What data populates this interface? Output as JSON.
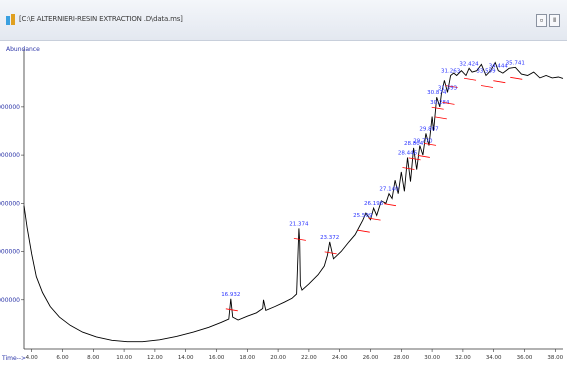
{
  "window": {
    "title": "[C:\\E ALTERNIERI-RESIN EXTRACTION .D\\data.ms]",
    "minimize_label": "▫",
    "close_label": "ǁ"
  },
  "chart_data": {
    "type": "line",
    "ylabel": "Abundance",
    "xlabel": "Time-->",
    "xlim": [
      3.5,
      38.5
    ],
    "ylim": [
      0,
      6200000
    ],
    "x_ticks": [
      4.0,
      6.0,
      8.0,
      10.0,
      12.0,
      14.0,
      16.0,
      18.0,
      20.0,
      22.0,
      24.0,
      26.0,
      28.0,
      30.0,
      32.0,
      34.0,
      36.0,
      38.0
    ],
    "y_ticks": [
      1000000,
      2000000,
      3000000,
      4000000,
      5000000
    ],
    "y_tick_labels": [
      "1000000",
      "2000000",
      "3000000",
      "4000000",
      "5000000"
    ],
    "line_color": "#000000",
    "baseline_color": "#ff0000",
    "label_color": "#2b34ff",
    "series": [
      {
        "x": [
          3.5,
          3.7,
          4.0,
          4.3,
          4.7,
          5.2,
          5.8,
          6.5,
          7.3,
          8.2,
          9.2,
          10.2,
          11.2,
          12.3,
          13.4,
          14.5,
          15.5,
          16.3,
          16.8,
          16.93,
          17.05,
          17.4,
          18.0,
          18.6,
          19.0,
          19.05,
          19.2,
          19.8,
          20.4,
          20.9,
          21.2,
          21.35,
          21.4,
          21.45,
          21.55,
          22.0,
          22.6,
          23.0,
          23.2,
          23.35,
          23.6,
          24.1,
          24.6,
          25.0,
          25.3,
          25.5,
          25.7,
          26.0,
          26.2,
          26.4,
          26.7,
          27.0,
          27.2,
          27.4,
          27.6,
          27.8,
          28.0,
          28.2,
          28.4,
          28.6,
          28.8,
          29.0,
          29.2,
          29.4,
          29.6,
          29.8,
          30.0,
          30.1,
          30.3,
          30.5,
          30.6,
          30.8,
          31.0,
          31.2,
          31.4,
          31.6,
          31.9,
          32.2,
          32.4,
          32.6,
          32.9,
          33.2,
          33.5,
          33.8,
          34.1,
          34.3,
          34.6,
          35.0,
          35.4,
          35.8,
          36.2,
          36.6,
          37.0,
          37.4,
          37.8,
          38.2,
          38.5
        ],
        "y": [
          2950000,
          2500000,
          1950000,
          1480000,
          1150000,
          860000,
          640000,
          470000,
          330000,
          230000,
          160000,
          130000,
          130000,
          170000,
          240000,
          330000,
          430000,
          530000,
          600000,
          1020000,
          640000,
          580000,
          660000,
          730000,
          820000,
          1000000,
          780000,
          860000,
          950000,
          1030000,
          1120000,
          2480000,
          2200000,
          1300000,
          1200000,
          1330000,
          1520000,
          1700000,
          1920000,
          2200000,
          1850000,
          2000000,
          2200000,
          2350000,
          2530000,
          2650000,
          2800000,
          2660000,
          2900000,
          2750000,
          3050000,
          3000000,
          3200000,
          3100000,
          3480000,
          3200000,
          3650000,
          3250000,
          3950000,
          3450000,
          4150000,
          3700000,
          4200000,
          4000000,
          4450000,
          4200000,
          4800000,
          4500000,
          5200000,
          5000000,
          5250000,
          5550000,
          5300000,
          5650000,
          5700000,
          5650000,
          5750000,
          5650000,
          5800000,
          5720000,
          5750000,
          5880000,
          5650000,
          5750000,
          5920000,
          5750000,
          5700000,
          5800000,
          5820000,
          5680000,
          5650000,
          5720000,
          5600000,
          5650000,
          5600000,
          5620000,
          5590000
        ]
      }
    ],
    "peaks": [
      {
        "x": 16.93,
        "y": 1020000,
        "label": "16.932"
      },
      {
        "x": 21.35,
        "y": 2480000,
        "label": "21.374"
      },
      {
        "x": 23.35,
        "y": 2200000,
        "label": "23.372"
      },
      {
        "x": 25.5,
        "y": 2650000,
        "label": "25.509"
      },
      {
        "x": 26.2,
        "y": 2900000,
        "label": "26.196"
      },
      {
        "x": 27.2,
        "y": 3200000,
        "label": "27.140"
      },
      {
        "x": 28.4,
        "y": 3950000,
        "label": "28.446"
      },
      {
        "x": 28.8,
        "y": 4150000,
        "label": "28.804"
      },
      {
        "x": 29.4,
        "y": 4200000,
        "label": "29.770"
      },
      {
        "x": 29.8,
        "y": 4450000,
        "label": "29.807"
      },
      {
        "x": 30.5,
        "y": 5000000,
        "label": "30.284"
      },
      {
        "x": 30.3,
        "y": 5200000,
        "label": "30.874"
      },
      {
        "x": 31.2,
        "y": 5650000,
        "label": "31.263"
      },
      {
        "x": 31.0,
        "y": 5300000,
        "label": "31.393"
      },
      {
        "x": 32.4,
        "y": 5800000,
        "label": "32.424"
      },
      {
        "x": 33.5,
        "y": 5650000,
        "label": "33.599"
      },
      {
        "x": 34.3,
        "y": 5750000,
        "label": "34.444"
      },
      {
        "x": 35.4,
        "y": 5820000,
        "label": "35.741"
      }
    ]
  }
}
